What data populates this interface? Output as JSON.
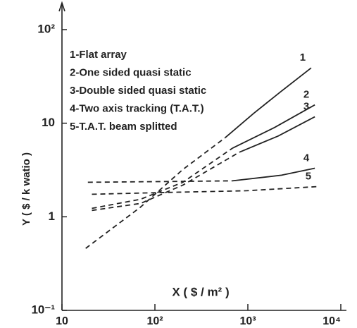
{
  "chart_data": {
    "type": "line",
    "xlabel": "X ( $ / m² )",
    "ylabel": "Y ( $ / k watio )",
    "log_x": true,
    "log_y": true,
    "xlim": [
      10,
      10000
    ],
    "ylim": [
      0.1,
      100
    ],
    "xticks": [
      {
        "value": 10,
        "label": "10"
      },
      {
        "value": 100,
        "label": "10²"
      },
      {
        "value": 1000,
        "label": "10³"
      },
      {
        "value": 10000,
        "label": "10⁴"
      }
    ],
    "yticks": [
      {
        "value": 0.1,
        "label": "10⁻¹"
      },
      1,
      10,
      {
        "value": 100,
        "label": "10²"
      }
    ],
    "color": "#222222",
    "legend": [
      "1-Flat array",
      "2-One sided quasi static",
      "3-Double sided quasi static",
      "4-Two axis tracking (T.A.T.)",
      "5-T.A.T. beam splitted"
    ],
    "series": [
      {
        "name": "1",
        "segments": [
          {
            "style": "dashed",
            "x": [
              18,
              70,
              200,
              570
            ],
            "values": [
              0.46,
              1.27,
              3.2,
              7
            ]
          },
          {
            "style": "solid",
            "x": [
              570,
              1150,
              2300,
              4800
            ],
            "values": [
              7,
              12.7,
              22,
              39
            ]
          }
        ]
      },
      {
        "name": "2",
        "segments": [
          {
            "style": "dashed",
            "x": [
              21,
              70,
              200,
              680
            ],
            "values": [
              1.23,
              1.54,
              2.34,
              5.4
            ]
          },
          {
            "style": "solid",
            "x": [
              680,
              1940,
              5250
            ],
            "values": [
              5.4,
              9,
              15.7
            ]
          }
        ]
      },
      {
        "name": "3",
        "segments": [
          {
            "style": "dashed",
            "x": [
              21,
              70,
              200,
              810
            ],
            "values": [
              1.17,
              1.39,
              2.18,
              4.9
            ]
          },
          {
            "style": "solid",
            "x": [
              810,
              2120,
              5250
            ],
            "values": [
              4.9,
              7.3,
              11.7
            ]
          }
        ]
      },
      {
        "name": "4",
        "segments": [
          {
            "style": "dashed",
            "x": [
              19,
              120,
              680
            ],
            "values": [
              2.34,
              2.38,
              2.42
            ]
          },
          {
            "style": "solid",
            "x": [
              680,
              2300,
              5250
            ],
            "values": [
              2.42,
              2.78,
              3.3
            ]
          }
        ]
      },
      {
        "name": "5",
        "segments": [
          {
            "style": "dashed",
            "x": [
              21,
              170,
              970,
              5520
            ],
            "values": [
              1.74,
              1.83,
              1.9,
              2.1
            ]
          }
        ]
      }
    ]
  }
}
